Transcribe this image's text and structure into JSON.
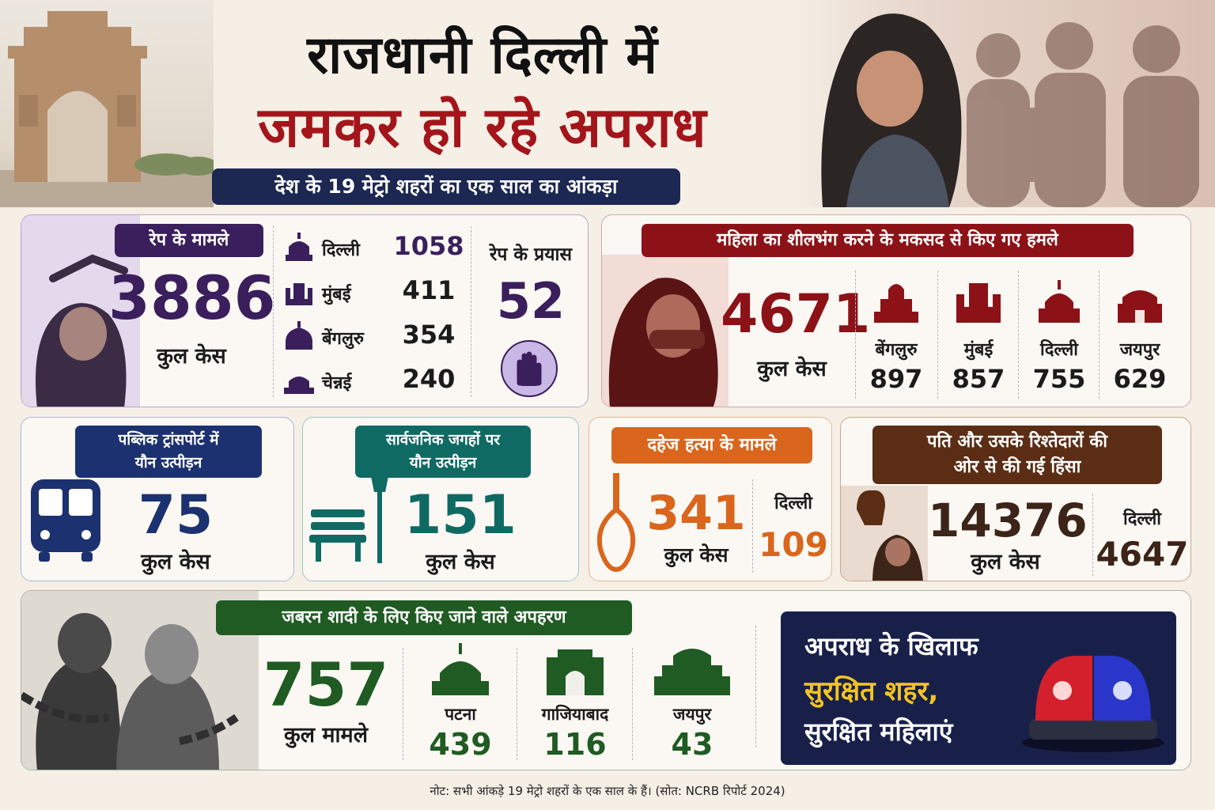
{
  "header": {
    "title_line1": "राजधानी दिल्ली में",
    "title_line2": "जमकर हो रहे अपराध",
    "subtitle": "देश के 19 मेट्रो शहरों का एक साल का आंकड़ा"
  },
  "rape": {
    "heading": "रेप के मामले",
    "total": "3886",
    "total_label": "कुल केस",
    "cities": [
      {
        "name": "दिल्ली",
        "value": "1058"
      },
      {
        "name": "मुंबई",
        "value": "411"
      },
      {
        "name": "बेंगलुरु",
        "value": "354"
      },
      {
        "name": "चेन्नई",
        "value": "240"
      }
    ],
    "attempt_heading": "रेप के प्रयास",
    "attempt_value": "52"
  },
  "modesty": {
    "heading": "महिला का शीलभंग करने के मकसद से किए गए हमले",
    "total": "4671",
    "total_label": "कुल केस",
    "cities": [
      {
        "name": "बेंगलुरु",
        "value": "897"
      },
      {
        "name": "मुंबई",
        "value": "857"
      },
      {
        "name": "दिल्ली",
        "value": "755"
      },
      {
        "name": "जयपुर",
        "value": "629"
      }
    ]
  },
  "transport": {
    "heading_line1": "पब्लिक ट्रांसपोर्ट में",
    "heading_line2": "यौन उत्पीड़न",
    "total": "75",
    "total_label": "कुल केस"
  },
  "public_places": {
    "heading_line1": "सार्वजनिक जगहों पर",
    "heading_line2": "यौन उत्पीड़न",
    "total": "151",
    "total_label": "कुल केस"
  },
  "dowry": {
    "heading": "दहेज हत्या के मामले",
    "total": "341",
    "total_label": "कुल केस",
    "city_name": "दिल्ली",
    "city_value": "109"
  },
  "husband": {
    "heading_line1": "पति और उसके रिश्तेदारों की",
    "heading_line2": "ओर से की गई हिंसा",
    "total": "14376",
    "total_label": "कुल केस",
    "city_name": "दिल्ली",
    "city_value": "4647"
  },
  "kidnap": {
    "heading": "जबरन शादी के लिए किए जाने वाले अपहरण",
    "total": "757",
    "total_label": "कुल मामले",
    "cities": [
      {
        "name": "पटना",
        "value": "439"
      },
      {
        "name": "गाजियाबाद",
        "value": "116"
      },
      {
        "name": "जयपुर",
        "value": "43"
      }
    ]
  },
  "safety": {
    "line1": "अपराध के खिलाफ",
    "line2": "सुरक्षित शहर,",
    "line3": "सुरक्षित महिलाएं"
  },
  "footer": {
    "note": "नोट: सभी आंकड़े 19 मेट्रो शहरों के एक साल के हैं। (सोत: NCRB रिपोर्ट 2024)"
  },
  "colors": {
    "rape_accent": "#3a1f5c",
    "modesty_accent": "#8c1218",
    "transport_accent": "#1c3170",
    "public_accent": "#0f6a63",
    "dowry_accent": "#d9661c",
    "husband_accent": "#5a2d14",
    "kidnap_accent": "#1f5b22",
    "safety_bg": "#18204a",
    "safety_highlight": "#f3c423"
  }
}
